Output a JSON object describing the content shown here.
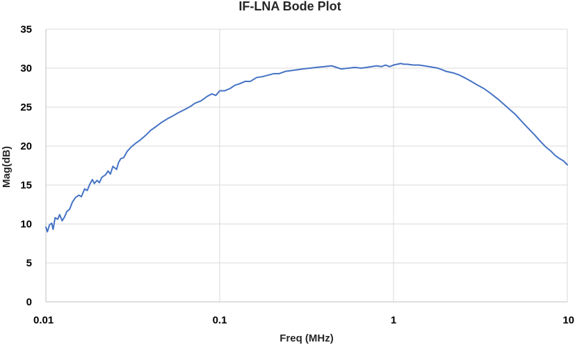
{
  "chart_data": {
    "type": "line",
    "title": "IF-LNA Bode Plot",
    "xlabel": "Freq (MHz)",
    "ylabel": "Mag(dB)",
    "x_scale": "log",
    "xlim": [
      0.01,
      10
    ],
    "ylim": [
      0,
      35
    ],
    "x_ticks": [
      "0.01",
      "0.1",
      "1",
      "10"
    ],
    "y_ticks": [
      "0",
      "5",
      "10",
      "15",
      "20",
      "25",
      "30",
      "35"
    ],
    "grid": true,
    "series": [
      {
        "color": "#4472c4",
        "points": [
          [
            0.01,
            9.6
          ],
          [
            0.0102,
            9.0
          ],
          [
            0.0105,
            9.9
          ],
          [
            0.0108,
            10.1
          ],
          [
            0.011,
            9.3
          ],
          [
            0.0113,
            10.8
          ],
          [
            0.0117,
            10.6
          ],
          [
            0.012,
            11.2
          ],
          [
            0.0124,
            10.4
          ],
          [
            0.0128,
            10.9
          ],
          [
            0.0132,
            11.6
          ],
          [
            0.0137,
            11.9
          ],
          [
            0.0142,
            12.8
          ],
          [
            0.0148,
            13.4
          ],
          [
            0.0155,
            13.7
          ],
          [
            0.016,
            13.5
          ],
          [
            0.0167,
            14.5
          ],
          [
            0.0173,
            14.3
          ],
          [
            0.0178,
            15.0
          ],
          [
            0.0185,
            15.7
          ],
          [
            0.019,
            15.2
          ],
          [
            0.0197,
            15.6
          ],
          [
            0.0203,
            15.3
          ],
          [
            0.021,
            16.0
          ],
          [
            0.022,
            16.3
          ],
          [
            0.0228,
            16.8
          ],
          [
            0.0235,
            16.4
          ],
          [
            0.0243,
            17.4
          ],
          [
            0.0255,
            17.0
          ],
          [
            0.0262,
            17.9
          ],
          [
            0.027,
            18.4
          ],
          [
            0.028,
            18.5
          ],
          [
            0.0293,
            19.3
          ],
          [
            0.031,
            19.9
          ],
          [
            0.033,
            20.4
          ],
          [
            0.035,
            20.8
          ],
          [
            0.038,
            21.5
          ],
          [
            0.04,
            22.0
          ],
          [
            0.043,
            22.5
          ],
          [
            0.046,
            23.0
          ],
          [
            0.05,
            23.5
          ],
          [
            0.054,
            23.9
          ],
          [
            0.058,
            24.3
          ],
          [
            0.063,
            24.7
          ],
          [
            0.068,
            25.1
          ],
          [
            0.072,
            25.5
          ],
          [
            0.078,
            25.8
          ],
          [
            0.085,
            26.4
          ],
          [
            0.09,
            26.7
          ],
          [
            0.095,
            26.5
          ],
          [
            0.1,
            27.1
          ],
          [
            0.107,
            27.1
          ],
          [
            0.115,
            27.4
          ],
          [
            0.122,
            27.8
          ],
          [
            0.13,
            28.0
          ],
          [
            0.14,
            28.3
          ],
          [
            0.15,
            28.3
          ],
          [
            0.163,
            28.8
          ],
          [
            0.175,
            28.9
          ],
          [
            0.19,
            29.1
          ],
          [
            0.205,
            29.3
          ],
          [
            0.22,
            29.3
          ],
          [
            0.24,
            29.6
          ],
          [
            0.26,
            29.7
          ],
          [
            0.28,
            29.8
          ],
          [
            0.3,
            29.9
          ],
          [
            0.33,
            30.0
          ],
          [
            0.36,
            30.1
          ],
          [
            0.4,
            30.2
          ],
          [
            0.44,
            30.3
          ],
          [
            0.47,
            30.1
          ],
          [
            0.5,
            29.9
          ],
          [
            0.55,
            30.0
          ],
          [
            0.6,
            30.1
          ],
          [
            0.65,
            30.0
          ],
          [
            0.7,
            30.1
          ],
          [
            0.75,
            30.2
          ],
          [
            0.8,
            30.3
          ],
          [
            0.85,
            30.2
          ],
          [
            0.9,
            30.4
          ],
          [
            0.95,
            30.2
          ],
          [
            1.0,
            30.4
          ],
          [
            1.05,
            30.5
          ],
          [
            1.1,
            30.6
          ],
          [
            1.15,
            30.5
          ],
          [
            1.2,
            30.5
          ],
          [
            1.3,
            30.4
          ],
          [
            1.4,
            30.4
          ],
          [
            1.5,
            30.3
          ],
          [
            1.6,
            30.2
          ],
          [
            1.7,
            30.1
          ],
          [
            1.8,
            30.0
          ],
          [
            1.9,
            29.8
          ],
          [
            2.0,
            29.6
          ],
          [
            2.2,
            29.4
          ],
          [
            2.4,
            29.1
          ],
          [
            2.6,
            28.7
          ],
          [
            2.8,
            28.3
          ],
          [
            3.0,
            27.9
          ],
          [
            3.3,
            27.4
          ],
          [
            3.6,
            26.8
          ],
          [
            4.0,
            26.0
          ],
          [
            4.5,
            25.0
          ],
          [
            5.0,
            24.1
          ],
          [
            5.5,
            23.1
          ],
          [
            6.0,
            22.2
          ],
          [
            6.5,
            21.4
          ],
          [
            7.0,
            20.6
          ],
          [
            7.5,
            19.9
          ],
          [
            8.0,
            19.4
          ],
          [
            8.5,
            18.8
          ],
          [
            9.0,
            18.4
          ],
          [
            9.5,
            18.1
          ],
          [
            10.0,
            17.6
          ]
        ]
      }
    ]
  }
}
